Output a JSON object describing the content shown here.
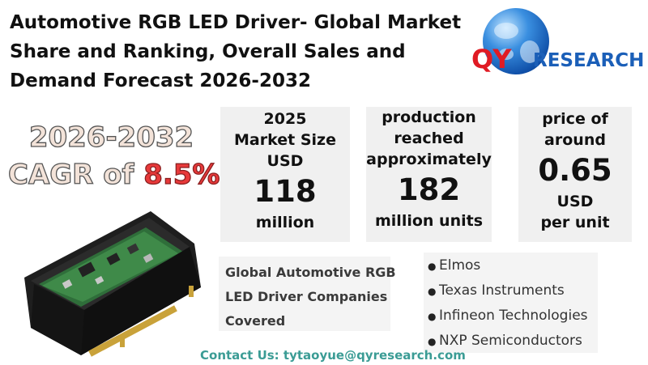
{
  "title": {
    "line1": "Automotive RGB LED Driver- Global Market",
    "line2": "Share and Ranking, Overall Sales and",
    "line3": "Demand Forecast 2026-2032"
  },
  "logo": {
    "q": "QY",
    "research": "RESEARCH"
  },
  "cagr": {
    "years": "2026-2032",
    "prefix": "CAGR of ",
    "value": "8.5%"
  },
  "stats": {
    "market_size": {
      "line1": "2025",
      "line2": "Market Size",
      "line3": "USD",
      "value": "118",
      "unit": "million"
    },
    "production": {
      "line1": "production",
      "line2": "reached",
      "line3": "approximately",
      "value": "182",
      "unit": "million units"
    },
    "price": {
      "line1": "price of",
      "line2": "around",
      "value": "0.65",
      "unit1": "USD",
      "unit2": "per unit"
    }
  },
  "companies": {
    "label_line1": "Global Automotive RGB",
    "label_line2": "LED Driver Companies",
    "label_line3": "Covered",
    "list": [
      "Elmos",
      "Texas Instruments",
      "Infineon Technologies",
      "NXP Semiconductors"
    ]
  },
  "contact": "Contact Us: tytaoyue@qyresearch.com",
  "colors": {
    "cagr_accent": "#e8393a",
    "logo_red": "#e01b24",
    "logo_blue": "#1b5fb8",
    "contact": "#3b9c95",
    "stat_bg": "#f0f0f0"
  }
}
